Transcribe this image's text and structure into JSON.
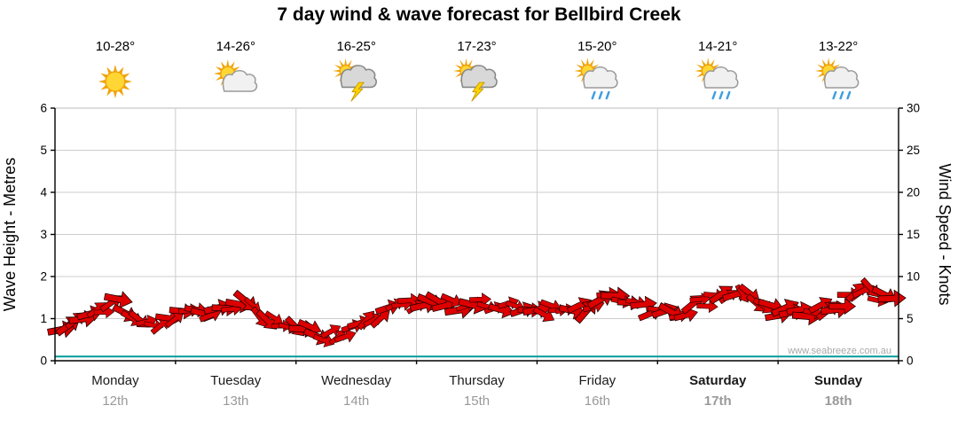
{
  "title": "7 day wind & wave forecast for Bellbird Creek",
  "watermark": "www.seabreeze.com.au",
  "days": [
    {
      "label": "Monday",
      "date": "12th",
      "temp": "10-28°",
      "icon": "sunny",
      "bold": false
    },
    {
      "label": "Tuesday",
      "date": "13th",
      "temp": "14-26°",
      "icon": "partly-cloudy",
      "bold": false
    },
    {
      "label": "Wednesday",
      "date": "14th",
      "temp": "16-25°",
      "icon": "thunderstorm",
      "bold": false
    },
    {
      "label": "Thursday",
      "date": "15th",
      "temp": "17-23°",
      "icon": "thunderstorm",
      "bold": false
    },
    {
      "label": "Friday",
      "date": "16th",
      "temp": "15-20°",
      "icon": "sun-showers",
      "bold": false
    },
    {
      "label": "Saturday",
      "date": "17th",
      "temp": "14-21°",
      "icon": "sun-showers",
      "bold": true
    },
    {
      "label": "Sunday",
      "date": "18th",
      "temp": "13-22°",
      "icon": "sun-showers",
      "bold": true
    }
  ],
  "chart_data": {
    "type": "line",
    "title": "7 day wind & wave forecast for Bellbird Creek",
    "categories": [
      "Monday 12th",
      "Tuesday 13th",
      "Wednesday 14th",
      "Thursday 15th",
      "Friday 16th",
      "Saturday 17th",
      "Sunday 18th"
    ],
    "samples_per_day": 4,
    "grid": true,
    "legend": "none",
    "left_axis": {
      "label": "Wave Height - Metres",
      "min": 0,
      "max": 6,
      "tick_step": 1
    },
    "right_axis": {
      "label": "Wind Speed - Knots",
      "min": 0,
      "max": 30,
      "tick_step": 5
    },
    "series": [
      {
        "name": "Wind Speed",
        "unit": "knots",
        "axis": "right",
        "color": "#dd0000",
        "values": [
          3.8,
          4.8,
          6.8,
          4.3,
          5.3,
          5.8,
          6.8,
          4.8,
          3.5,
          2.8,
          4.3,
          6.5,
          6.8,
          6.5,
          6.8,
          6.5,
          6.0,
          6.5,
          8.0,
          6.0,
          5.8,
          7.3,
          8.3,
          6.0,
          5.8,
          6.5,
          8.3,
          6.5
        ]
      },
      {
        "name": "Wave Height",
        "unit": "metres",
        "axis": "left",
        "color": "#009b9b",
        "values": [
          0.1,
          0.1,
          0.1,
          0.1,
          0.1,
          0.1,
          0.1,
          0.1,
          0.1,
          0.1,
          0.1,
          0.1,
          0.1,
          0.1,
          0.1,
          0.1,
          0.1,
          0.1,
          0.1,
          0.1,
          0.1,
          0.1,
          0.1,
          0.1,
          0.1,
          0.1,
          0.1,
          0.1
        ]
      }
    ]
  }
}
